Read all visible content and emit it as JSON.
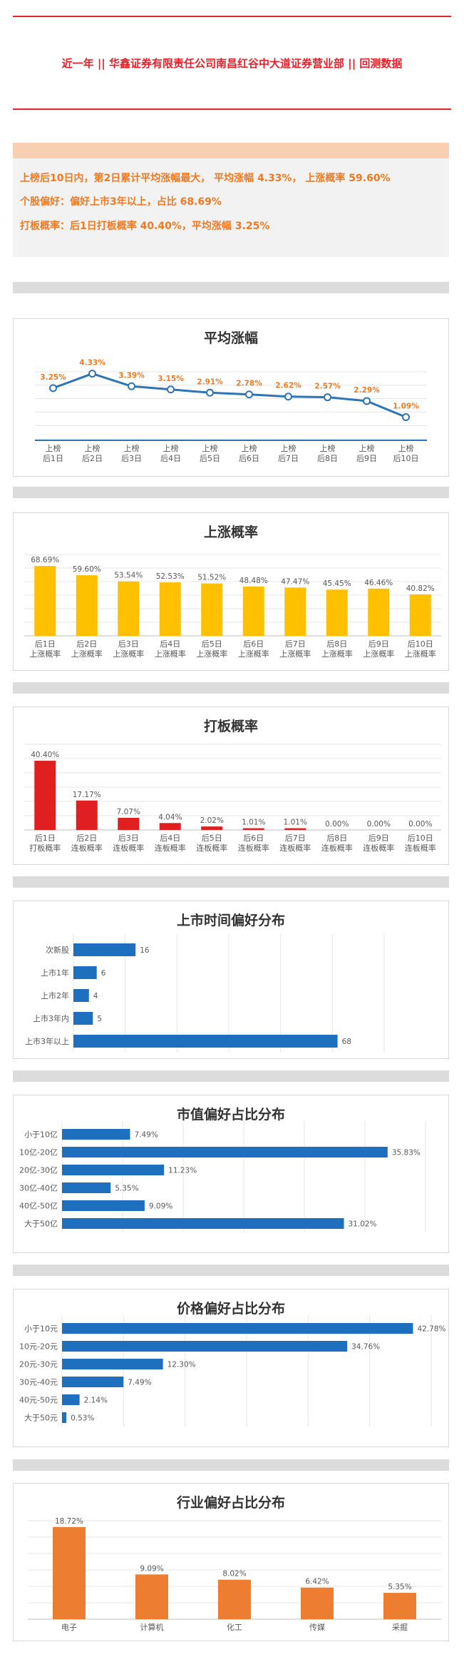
{
  "header": {
    "title": "近一年  ||  华鑫证券有限责任公司南昌红谷中大道证券营业部  ||  回测数据"
  },
  "summary": {
    "line1": "上榜后10日内，第2日累计平均涨幅最大， 平均涨幅 4.33%， 上涨概率 59.60%",
    "line2": "个股偏好：偏好上市3年以上，占比 68.69%",
    "line3": "打板概率：后1日打板概率 40.40%，平均涨幅 3.25%"
  },
  "colors": {
    "accent_red": "#e8202a",
    "orange_text": "#f07a22",
    "line_blue": "#2e75b6",
    "bar_yellow": "#ffc000",
    "bar_red": "#e02020",
    "bar_blue": "#1f6fbf",
    "bar_orange": "#ed7d31"
  },
  "chart_data": [
    {
      "type": "line",
      "title": "平均涨幅",
      "categories": [
        "上榜\n后1日",
        "上榜\n后2日",
        "上榜\n后3日",
        "上榜\n后4日",
        "上榜\n后5日",
        "上榜\n后6日",
        "上榜\n后7日",
        "上榜\n后8日",
        "上榜\n后9日",
        "上榜\n后10日"
      ],
      "values": [
        3.25,
        4.33,
        3.39,
        3.15,
        2.91,
        2.78,
        2.62,
        2.57,
        2.29,
        1.09
      ],
      "labels": [
        "3.25%",
        "4.33%",
        "3.39%",
        "3.15%",
        "2.91%",
        "2.78%",
        "2.62%",
        "2.57%",
        "2.29%",
        "1.09%"
      ],
      "ylim": [
        0,
        5
      ]
    },
    {
      "type": "bar",
      "title": "上涨概率",
      "categories": [
        "后1日\n上涨概率",
        "后2日\n上涨概率",
        "后3日\n上涨概率",
        "后4日\n上涨概率",
        "后5日\n上涨概率",
        "后6日\n上涨概率",
        "后7日\n上涨概率",
        "后8日\n上涨概率",
        "后9日\n上涨概率",
        "后10日\n上涨概率"
      ],
      "values": [
        68.69,
        59.6,
        53.54,
        52.53,
        51.52,
        48.48,
        47.47,
        45.45,
        46.46,
        40.82
      ],
      "labels": [
        "68.69%",
        "59.60%",
        "53.54%",
        "52.53%",
        "51.52%",
        "48.48%",
        "47.47%",
        "45.45%",
        "46.46%",
        "40.82%"
      ],
      "ylim": [
        0,
        80
      ]
    },
    {
      "type": "bar",
      "title": "打板概率",
      "categories": [
        "后1日\n打板概率",
        "后2日\n连板概率",
        "后3日\n连板概率",
        "后4日\n连板概率",
        "后5日\n连板概率",
        "后6日\n连板概率",
        "后7日\n连板概率",
        "后8日\n连板概率",
        "后9日\n连板概率",
        "后10日\n连板概率"
      ],
      "values": [
        40.4,
        17.17,
        7.07,
        4.04,
        2.02,
        1.01,
        1.01,
        0.0,
        0.0,
        0.0
      ],
      "labels": [
        "40.40%",
        "17.17%",
        "7.07%",
        "4.04%",
        "2.02%",
        "1.01%",
        "1.01%",
        "0.00%",
        "0.00%",
        "0.00%"
      ],
      "ylim": [
        0,
        50
      ]
    },
    {
      "type": "bar",
      "orientation": "horizontal",
      "title": "上市时间偏好分布",
      "categories": [
        "次新股",
        "上市1年",
        "上市2年",
        "上市3年内",
        "上市3年以上"
      ],
      "values": [
        16,
        6,
        4,
        5,
        68
      ],
      "labels": [
        "16",
        "6",
        "4",
        "5",
        "68"
      ],
      "xlim": [
        0,
        80
      ]
    },
    {
      "type": "bar",
      "orientation": "horizontal",
      "title": "市值偏好占比分布",
      "categories": [
        "小于10亿",
        "10亿-20亿",
        "20亿-30亿",
        "30亿-40亿",
        "40亿-50亿",
        "大于50亿"
      ],
      "values": [
        7.49,
        35.83,
        11.23,
        5.35,
        9.09,
        31.02
      ],
      "labels": [
        "7.49%",
        "35.83%",
        "11.23%",
        "5.35%",
        "9.09%",
        "31.02%"
      ],
      "xlim": [
        0,
        40
      ]
    },
    {
      "type": "bar",
      "orientation": "horizontal",
      "title": "价格偏好占比分布",
      "categories": [
        "小于10元",
        "10元-20元",
        "20元-30元",
        "30元-40元",
        "40元-50元",
        "大于50元"
      ],
      "values": [
        42.78,
        34.76,
        12.3,
        7.49,
        2.14,
        0.53
      ],
      "labels": [
        "42.78%",
        "34.76%",
        "12.30%",
        "7.49%",
        "2.14%",
        "0.53%"
      ],
      "xlim": [
        0,
        45
      ]
    },
    {
      "type": "bar",
      "title": "行业偏好占比分布",
      "categories": [
        "电子",
        "计算机",
        "化工",
        "传媒",
        "采掘"
      ],
      "values": [
        18.72,
        9.09,
        8.02,
        6.42,
        5.35
      ],
      "labels": [
        "18.72%",
        "9.09%",
        "8.02%",
        "6.42%",
        "5.35%"
      ],
      "ylim": [
        0,
        20
      ]
    }
  ]
}
